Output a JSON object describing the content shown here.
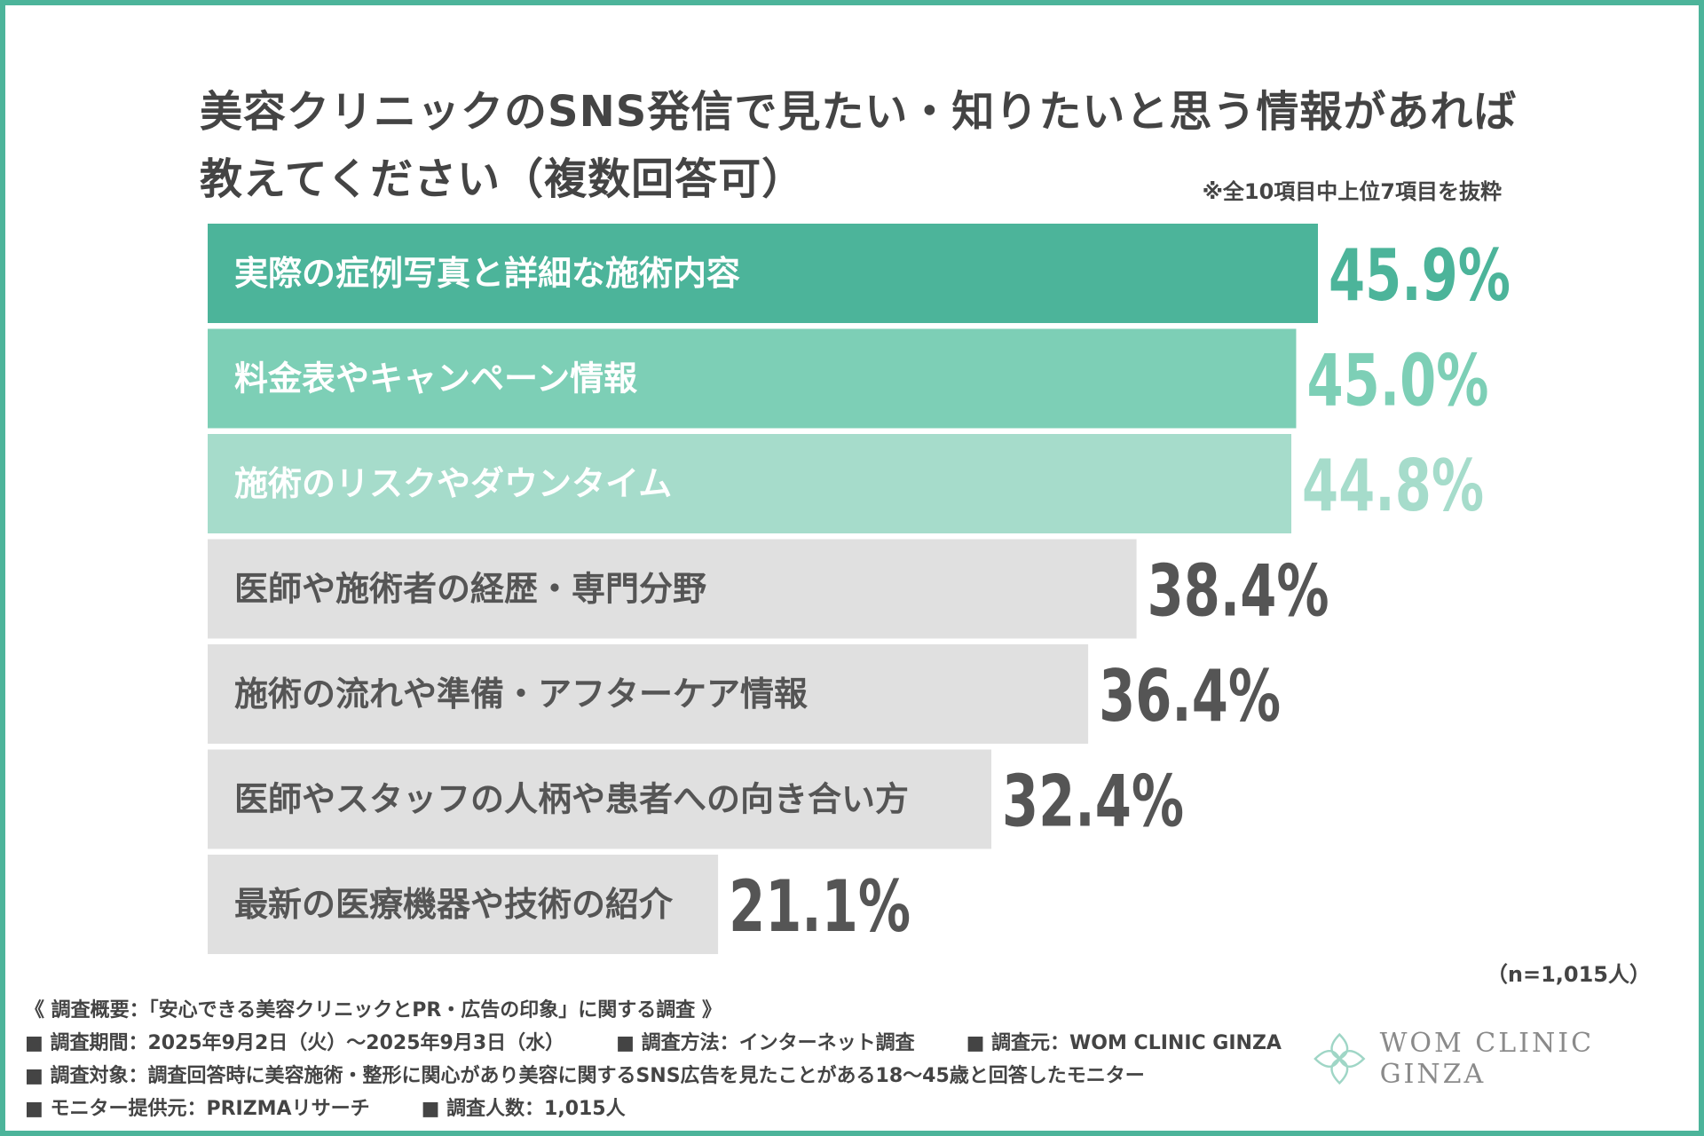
{
  "title_lines": [
    "美容クリニックのSNS発信で見たい・知りたいと思う情報があれば",
    "教えてください（複数回答可）"
  ],
  "note": "※全10項目中上位7項目を抜粋",
  "sample_note": "（n=1,015人）",
  "chart_data": {
    "type": "bar",
    "orientation": "horizontal",
    "categories": [
      "実際の症例写真と詳細な施術内容",
      "料金表やキャンペーン情報",
      "施術のリスクやダウンタイム",
      "医師や施術者の経歴・専門分野",
      "施術の流れや準備・アフターケア情報",
      "医師やスタッフの人柄や患者への向き合い方",
      "最新の医療機器や技術の紹介"
    ],
    "values": [
      45.9,
      45.0,
      44.8,
      38.4,
      36.4,
      32.4,
      21.1
    ],
    "value_labels": [
      "45.9%",
      "45.0%",
      "44.8%",
      "38.4%",
      "36.4%",
      "32.4%",
      "21.1%"
    ],
    "bar_colors": [
      "#4cb49a",
      "#7dcfb6",
      "#a6dccb",
      "#e0e0e0",
      "#e0e0e0",
      "#e0e0e0",
      "#e0e0e0"
    ],
    "label_colors": [
      "#ffffff",
      "#ffffff",
      "#ffffff",
      "#555555",
      "#555555",
      "#555555",
      "#555555"
    ],
    "value_colors": [
      "#4cb49a",
      "#7dcfb6",
      "#a6dccb",
      "#555555",
      "#555555",
      "#555555",
      "#555555"
    ]
  },
  "footer": {
    "overview": "《 調査概要：「安心できる美容クリニックとPR・広告の印象」に関する調査 》",
    "period": "■ 調査期間：2025年9月2日（火）〜2025年9月3日（水）",
    "method": "■ 調査方法：インターネット調査",
    "source": "■ 調査元：WOM CLINIC GINZA",
    "target": "■ 調査対象：調査回答時に美容施術・整形に関心があり美容に関するSNS広告を見たことがある18〜45歳と回答したモニター",
    "provider": "■ モニター提供元：PRIZMAリサーチ",
    "count": "■ 調査人数：1,015人"
  },
  "logo_text": "WOM CLINIC GINZA",
  "accent_color": "#4cb49a"
}
